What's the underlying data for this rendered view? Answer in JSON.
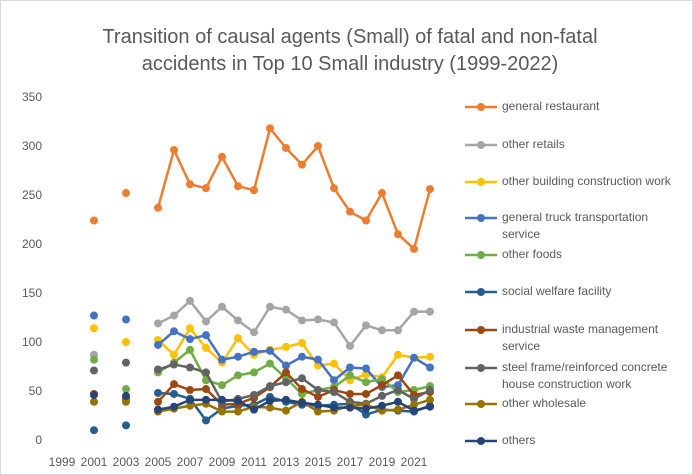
{
  "chart_data": {
    "type": "line",
    "title": "Transition of causal agents (Small) of fatal and non-fatal accidents in Top 10 Small industry (1999-2022)",
    "categories": [
      "1999",
      null,
      "2001",
      null,
      "2003",
      null,
      "2005",
      null,
      "2007",
      null,
      "2009",
      null,
      "2011",
      null,
      "2013",
      null,
      "2015",
      null,
      "2017",
      null,
      "2019",
      null,
      "2021",
      null
    ],
    "ylim": [
      0,
      350
    ],
    "yticks": [
      0,
      50,
      100,
      150,
      200,
      250,
      300,
      350
    ],
    "grid": false,
    "legend": "right",
    "series": [
      {
        "name": "general restaurant",
        "color": "#ED7D31",
        "values": [
          null,
          null,
          225,
          null,
          253,
          null,
          238,
          297,
          262,
          258,
          290,
          260,
          256,
          319,
          299,
          282,
          301,
          258,
          234,
          225,
          253,
          211,
          196,
          257
        ]
      },
      {
        "name": "other retails",
        "color": "#A5A5A5",
        "values": [
          null,
          null,
          88,
          null,
          null,
          null,
          120,
          128,
          143,
          122,
          137,
          123,
          111,
          137,
          134,
          123,
          124,
          121,
          97,
          118,
          113,
          113,
          132,
          132
        ]
      },
      {
        "name": "other building construction work",
        "color": "#FFC000",
        "values": [
          null,
          null,
          115,
          null,
          101,
          null,
          103,
          88,
          115,
          95,
          80,
          105,
          88,
          93,
          96,
          100,
          77,
          79,
          62,
          68,
          65,
          88,
          85,
          86
        ]
      },
      {
        "name": "general truck transportation service",
        "color": "#4472C4",
        "values": [
          null,
          null,
          128,
          null,
          124,
          null,
          98,
          112,
          104,
          108,
          83,
          86,
          91,
          92,
          77,
          86,
          83,
          62,
          75,
          74,
          55,
          57,
          85,
          75
        ]
      },
      {
        "name": "other foods",
        "color": "#70AD47",
        "values": [
          null,
          null,
          83,
          null,
          53,
          null,
          70,
          80,
          93,
          62,
          57,
          67,
          70,
          79,
          64,
          48,
          52,
          55,
          67,
          60,
          63,
          50,
          52,
          56
        ]
      },
      {
        "name": "social welfare facility",
        "color": "#255E91",
        "values": [
          null,
          null,
          11,
          null,
          16,
          null,
          49,
          48,
          43,
          21,
          33,
          36,
          37,
          45,
          40,
          37,
          36,
          37,
          38,
          27,
          32,
          31,
          30,
          36
        ]
      },
      {
        "name": "industrial waste management service",
        "color": "#9E480E",
        "values": [
          null,
          null,
          48,
          null,
          43,
          null,
          40,
          58,
          52,
          53,
          37,
          38,
          44,
          55,
          70,
          53,
          45,
          52,
          48,
          48,
          57,
          67,
          47,
          50
        ]
      },
      {
        "name": "steel frame/reinforced concrete house construction work",
        "color": "#636363",
        "values": [
          null,
          null,
          72,
          null,
          80,
          null,
          73,
          78,
          75,
          70,
          40,
          43,
          47,
          56,
          60,
          64,
          52,
          50,
          40,
          38,
          46,
          52,
          43,
          52
        ]
      },
      {
        "name": "other wholesale",
        "color": "#997300",
        "values": [
          null,
          null,
          40,
          null,
          40,
          null,
          30,
          33,
          36,
          38,
          30,
          30,
          35,
          34,
          31,
          40,
          30,
          31,
          36,
          37,
          31,
          32,
          37,
          42
        ]
      },
      {
        "name": "others",
        "color": "#264478",
        "values": [
          null,
          null,
          47,
          null,
          46,
          null,
          32,
          35,
          42,
          42,
          42,
          41,
          32,
          41,
          42,
          39,
          37,
          34,
          34,
          33,
          36,
          40,
          31,
          35
        ]
      }
    ]
  }
}
